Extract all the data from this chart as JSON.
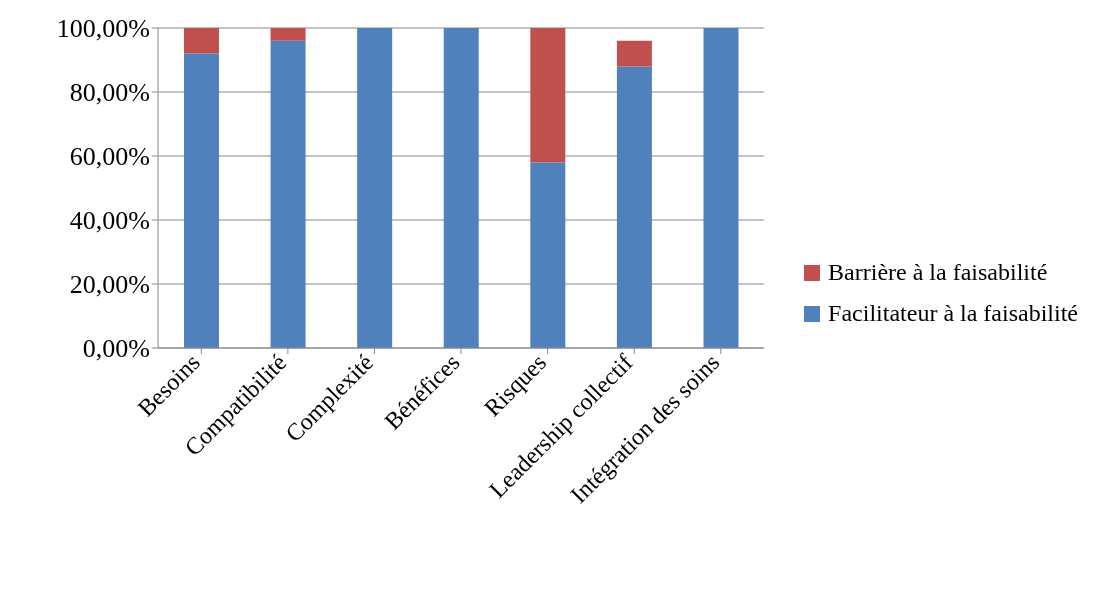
{
  "chart_data": {
    "type": "bar",
    "stacked": true,
    "categories": [
      "Besoins",
      "Compatibilité",
      "Complexité",
      "Bénéfices",
      "Risques",
      "Leadership collectif",
      "Intégration des soins"
    ],
    "series": [
      {
        "name": "Facilitateur à la faisabilité",
        "color": "#4f81bd",
        "values": [
          92,
          96,
          100,
          100,
          58,
          88,
          100
        ]
      },
      {
        "name": "Barrière à la faisabilité",
        "color": "#c0504d",
        "values": [
          8,
          4,
          0,
          0,
          42,
          8,
          0
        ]
      }
    ],
    "ylim": [
      0,
      100
    ],
    "yticks": [
      {
        "value": 0,
        "label": "0,00%"
      },
      {
        "value": 20,
        "label": "20,00%"
      },
      {
        "value": 40,
        "label": "40,00%"
      },
      {
        "value": 60,
        "label": "60,00%"
      },
      {
        "value": 80,
        "label": "80,00%"
      },
      {
        "value": 100,
        "label": "100,00%"
      }
    ],
    "grid": "y",
    "legend": "right"
  }
}
